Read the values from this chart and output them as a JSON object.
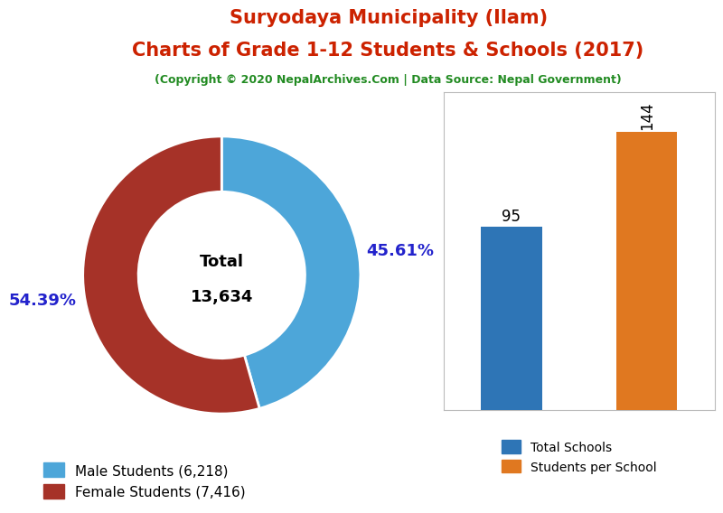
{
  "title_line1": "Suryodaya Municipality (Ilam)",
  "title_line2": "Charts of Grade 1-12 Students & Schools (2017)",
  "subtitle": "(Copyright © 2020 NepalArchives.Com | Data Source: Nepal Government)",
  "title_color": "#cc2200",
  "subtitle_color": "#228B22",
  "male_students": 6218,
  "female_students": 7416,
  "total_students": 13634,
  "male_pct": "45.61%",
  "female_pct": "54.39%",
  "male_color": "#4da6d9",
  "female_color": "#a63228",
  "donut_label_color": "#2222cc",
  "total_schools": 95,
  "students_per_school": 144,
  "bar_blue": "#2e75b6",
  "bar_orange": "#e07820",
  "legend_label_male": "Male Students (6,218)",
  "legend_label_female": "Female Students (7,416)",
  "legend_label_schools": "Total Schools",
  "legend_label_sps": "Students per School"
}
